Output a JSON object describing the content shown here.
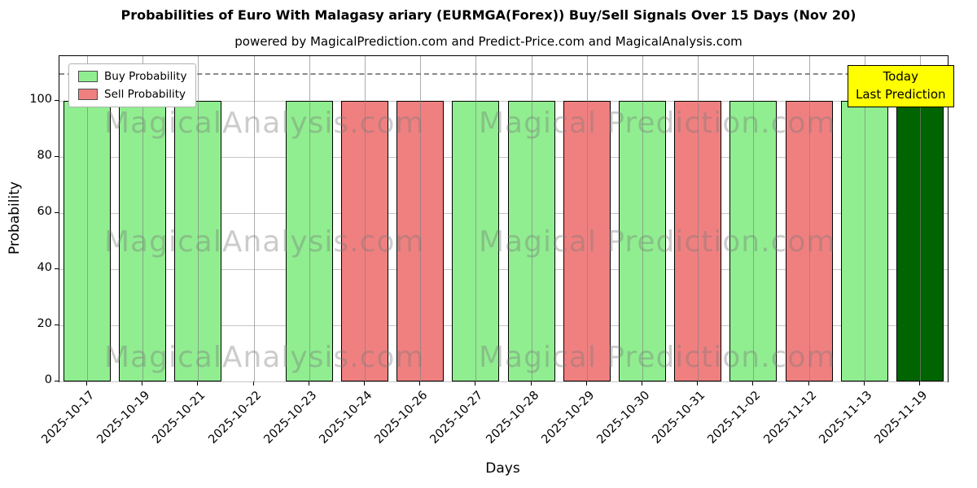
{
  "chart_data": {
    "type": "bar",
    "title": "Probabilities of Euro With Malagasy ariary (EURMGA(Forex)) Buy/Sell Signals Over 15 Days (Nov 20)",
    "subtitle": "powered by MagicalPrediction.com and Predict-Price.com and MagicalAnalysis.com",
    "xlabel": "Days",
    "ylabel": "Probability",
    "ylim": [
      0,
      116
    ],
    "yticks": [
      0,
      20,
      40,
      60,
      80,
      100
    ],
    "grid": true,
    "legend_position": "upper-left",
    "legend": [
      {
        "label": "Buy Probability",
        "color": "#90ee90"
      },
      {
        "label": "Sell Probability",
        "color": "#f08080"
      }
    ],
    "threshold_line": {
      "y": 110,
      "style": "dashed",
      "color": "#8a8a8a"
    },
    "annotation": {
      "lines": [
        "Today",
        "Last Prediction"
      ],
      "bg": "#ffff00"
    },
    "colors": {
      "buy": "#90ee90",
      "sell": "#f08080",
      "today": "#006400",
      "edge": "#000000"
    },
    "categories": [
      "2025-10-17",
      "2025-10-19",
      "2025-10-21",
      "2025-10-22",
      "2025-10-23",
      "2025-10-24",
      "2025-10-26",
      "2025-10-27",
      "2025-10-28",
      "2025-10-29",
      "2025-10-30",
      "2025-10-31",
      "2025-11-02",
      "2025-11-12",
      "2025-11-13",
      "2025-11-19"
    ],
    "bars": [
      {
        "date": "2025-10-17",
        "value": 100,
        "signal": "buy"
      },
      {
        "date": "2025-10-19",
        "value": 100,
        "signal": "buy"
      },
      {
        "date": "2025-10-21",
        "value": 100,
        "signal": "buy"
      },
      {
        "date": "2025-10-22",
        "value": 0,
        "signal": "none"
      },
      {
        "date": "2025-10-23",
        "value": 100,
        "signal": "buy"
      },
      {
        "date": "2025-10-24",
        "value": 100,
        "signal": "sell"
      },
      {
        "date": "2025-10-26",
        "value": 100,
        "signal": "sell"
      },
      {
        "date": "2025-10-27",
        "value": 100,
        "signal": "buy"
      },
      {
        "date": "2025-10-28",
        "value": 100,
        "signal": "buy"
      },
      {
        "date": "2025-10-29",
        "value": 100,
        "signal": "sell"
      },
      {
        "date": "2025-10-30",
        "value": 100,
        "signal": "buy"
      },
      {
        "date": "2025-10-31",
        "value": 100,
        "signal": "sell"
      },
      {
        "date": "2025-11-02",
        "value": 100,
        "signal": "buy"
      },
      {
        "date": "2025-11-12",
        "value": 100,
        "signal": "sell"
      },
      {
        "date": "2025-11-13",
        "value": 100,
        "signal": "buy"
      },
      {
        "date": "2025-11-19",
        "value": 100,
        "signal": "today"
      }
    ],
    "watermarks": [
      "MagicalAnalysis.com",
      "Magical Prediction.com"
    ]
  }
}
